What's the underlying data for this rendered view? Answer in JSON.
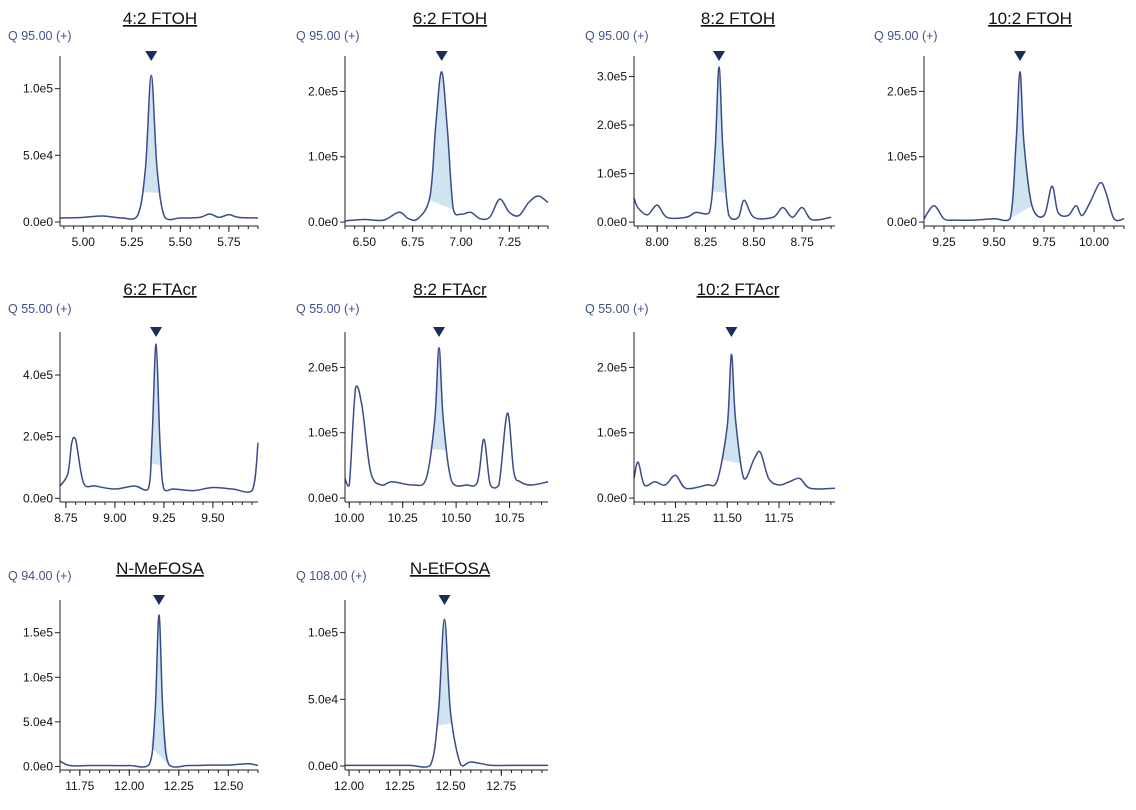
{
  "figure": {
    "layout": "3 rows x 4 columns grid of chromatograms"
  },
  "chart_data": [
    {
      "type": "line",
      "title": "4:2 FTOH",
      "ion_label": "Q 95.00 (+)",
      "xlim": [
        4.88,
        5.9
      ],
      "ylim": [
        -3000,
        120000
      ],
      "xticks": [
        5.0,
        5.25,
        5.5,
        5.75
      ],
      "xtick_labels": [
        "5.00",
        "5.25",
        "5.50",
        "5.75"
      ],
      "yticks": [
        0,
        50000,
        100000
      ],
      "ytick_labels": [
        "0.0e0",
        "5.0e4",
        "1.0e5"
      ],
      "peak_rt": 5.35,
      "shaded_range": [
        5.3,
        5.4
      ],
      "x": [
        4.88,
        5.0,
        5.1,
        5.2,
        5.28,
        5.32,
        5.35,
        5.38,
        5.42,
        5.5,
        5.6,
        5.65,
        5.7,
        5.75,
        5.8,
        5.9
      ],
      "y": [
        3000,
        3500,
        4500,
        3000,
        5000,
        40000,
        110000,
        40000,
        3500,
        3000,
        3500,
        6000,
        3500,
        5500,
        3500,
        3000
      ]
    },
    {
      "type": "line",
      "title": "6:2 FTOH",
      "ion_label": "Q 95.00 (+)",
      "xlim": [
        6.4,
        7.45
      ],
      "ylim": [
        -6000,
        245000
      ],
      "xticks": [
        6.5,
        6.75,
        7.0,
        7.25
      ],
      "xtick_labels": [
        "6.50",
        "6.75",
        "7.00",
        "7.25"
      ],
      "yticks": [
        0,
        100000,
        200000
      ],
      "ytick_labels": [
        "0.0e0",
        "1.0e5",
        "2.0e5"
      ],
      "peak_rt": 6.9,
      "shaded_range": [
        6.83,
        6.97
      ],
      "x": [
        6.4,
        6.5,
        6.6,
        6.68,
        6.73,
        6.78,
        6.84,
        6.87,
        6.9,
        6.93,
        6.96,
        7.0,
        7.05,
        7.1,
        7.15,
        7.2,
        7.25,
        7.3,
        7.35,
        7.4,
        7.45
      ],
      "y": [
        2000,
        4000,
        3000,
        15000,
        5000,
        6000,
        40000,
        150000,
        230000,
        140000,
        20000,
        12000,
        15000,
        5000,
        8000,
        35000,
        15000,
        10000,
        30000,
        40000,
        30000
      ]
    },
    {
      "type": "line",
      "title": "8:2 FTOH",
      "ion_label": "Q 95.00 (+)",
      "xlim": [
        7.88,
        8.92
      ],
      "ylim": [
        -8000,
        330000
      ],
      "xticks": [
        8.0,
        8.25,
        8.5,
        8.75
      ],
      "xtick_labels": [
        "8.00",
        "8.25",
        "8.50",
        "8.75"
      ],
      "yticks": [
        0,
        100000,
        200000,
        300000
      ],
      "ytick_labels": [
        "0.0e0",
        "1.0e5",
        "2.0e5",
        "3.0e5"
      ],
      "peak_rt": 8.32,
      "shaded_range": [
        8.28,
        8.36
      ],
      "x": [
        7.88,
        7.9,
        7.95,
        8.0,
        8.05,
        8.15,
        8.2,
        8.27,
        8.3,
        8.32,
        8.34,
        8.37,
        8.42,
        8.45,
        8.5,
        8.6,
        8.65,
        8.7,
        8.75,
        8.8,
        8.9
      ],
      "y": [
        50000,
        30000,
        15000,
        35000,
        10000,
        10000,
        20000,
        20000,
        150000,
        320000,
        150000,
        15000,
        10000,
        45000,
        10000,
        10000,
        30000,
        10000,
        30000,
        5000,
        10000
      ]
    },
    {
      "type": "line",
      "title": "10:2 FTOH",
      "ion_label": "Q 95.00 (+)",
      "xlim": [
        9.15,
        10.15
      ],
      "ylim": [
        -6000,
        245000
      ],
      "xticks": [
        9.25,
        9.5,
        9.75,
        10.0
      ],
      "xtick_labels": [
        "9.25",
        "9.50",
        "9.75",
        "10.00"
      ],
      "yticks": [
        0,
        100000,
        200000
      ],
      "ytick_labels": [
        "0.0e0",
        "1.0e5",
        "2.0e5"
      ],
      "peak_rt": 9.63,
      "shaded_range": [
        9.58,
        9.69
      ],
      "x": [
        9.15,
        9.2,
        9.25,
        9.3,
        9.4,
        9.5,
        9.58,
        9.61,
        9.63,
        9.65,
        9.69,
        9.75,
        9.79,
        9.82,
        9.87,
        9.91,
        9.94,
        9.98,
        10.03,
        10.06,
        10.1,
        10.15
      ],
      "y": [
        5000,
        25000,
        5000,
        3000,
        3000,
        5000,
        5000,
        120000,
        230000,
        120000,
        25000,
        10000,
        55000,
        15000,
        10000,
        25000,
        10000,
        30000,
        60000,
        45000,
        5000,
        5000
      ]
    },
    {
      "type": "line",
      "title": "6:2 FTAcr",
      "ion_label": "Q 55.00 (+)",
      "xlim": [
        8.72,
        9.73
      ],
      "ylim": [
        -12000,
        520000
      ],
      "xticks": [
        8.75,
        9.0,
        9.25,
        9.5
      ],
      "xtick_labels": [
        "8.75",
        "9.00",
        "9.25",
        "9.50"
      ],
      "yticks": [
        0,
        200000,
        400000
      ],
      "ytick_labels": [
        "0.0e0",
        "2.0e5",
        "4.0e5"
      ],
      "peak_rt": 9.21,
      "shaded_range": [
        9.18,
        9.24
      ],
      "x": [
        8.72,
        8.76,
        8.78,
        8.8,
        8.84,
        8.9,
        9.0,
        9.1,
        9.17,
        9.19,
        9.21,
        9.23,
        9.25,
        9.3,
        9.4,
        9.5,
        9.6,
        9.7,
        9.73
      ],
      "y": [
        40000,
        80000,
        180000,
        190000,
        50000,
        40000,
        30000,
        40000,
        30000,
        200000,
        500000,
        180000,
        30000,
        30000,
        25000,
        35000,
        30000,
        25000,
        180000
      ]
    },
    {
      "type": "line",
      "title": "8:2 FTAcr",
      "ion_label": "Q 55.00 (+)",
      "xlim": [
        9.98,
        10.93
      ],
      "ylim": [
        -6000,
        245000
      ],
      "xticks": [
        10.0,
        10.25,
        10.5,
        10.75
      ],
      "xtick_labels": [
        "10.00",
        "10.25",
        "10.50",
        "10.75"
      ],
      "yticks": [
        0,
        100000,
        200000
      ],
      "ytick_labels": [
        "0.0e0",
        "1.0e5",
        "2.0e5"
      ],
      "peak_rt": 10.42,
      "shaded_range": [
        10.38,
        10.46
      ],
      "x": [
        9.98,
        10.0,
        10.03,
        10.06,
        10.1,
        10.15,
        10.2,
        10.3,
        10.36,
        10.4,
        10.42,
        10.44,
        10.48,
        10.55,
        10.6,
        10.63,
        10.66,
        10.7,
        10.74,
        10.77,
        10.8,
        10.85,
        10.93
      ],
      "y": [
        30000,
        20000,
        170000,
        140000,
        40000,
        20000,
        25000,
        20000,
        30000,
        120000,
        230000,
        120000,
        25000,
        20000,
        25000,
        90000,
        20000,
        20000,
        130000,
        40000,
        25000,
        20000,
        25000
      ]
    },
    {
      "type": "line",
      "title": "10:2 FTAcr",
      "ion_label": "Q 55.00 (+)",
      "xlim": [
        11.05,
        12.02
      ],
      "ylim": [
        -6000,
        245000
      ],
      "xticks": [
        11.25,
        11.5,
        11.75
      ],
      "xtick_labels": [
        "11.25",
        "11.50",
        "11.75"
      ],
      "yticks": [
        0,
        100000,
        200000
      ],
      "ytick_labels": [
        "0.0e0",
        "1.0e5",
        "2.0e5"
      ],
      "peak_rt": 11.52,
      "shaded_range": [
        11.47,
        11.57
      ],
      "x": [
        11.05,
        11.07,
        11.1,
        11.15,
        11.2,
        11.25,
        11.3,
        11.4,
        11.45,
        11.5,
        11.52,
        11.54,
        11.58,
        11.63,
        11.66,
        11.7,
        11.75,
        11.8,
        11.85,
        11.9,
        12.02
      ],
      "y": [
        30000,
        55000,
        20000,
        25000,
        20000,
        35000,
        15000,
        20000,
        25000,
        110000,
        220000,
        120000,
        30000,
        60000,
        70000,
        30000,
        20000,
        25000,
        30000,
        15000,
        15000
      ]
    },
    {
      "type": "line",
      "title": "N-MeFOSA",
      "ion_label": "Q 94.00 (+)",
      "xlim": [
        11.65,
        12.65
      ],
      "ylim": [
        -4000,
        180000
      ],
      "xticks": [
        11.75,
        12.0,
        12.25,
        12.5
      ],
      "xtick_labels": [
        "11.75",
        "12.00",
        "12.25",
        "12.50"
      ],
      "yticks": [
        0,
        50000,
        100000,
        150000
      ],
      "ytick_labels": [
        "0.0e0",
        "5.0e4",
        "1.0e5",
        "1.5e5"
      ],
      "peak_rt": 12.15,
      "shaded_range": [
        12.11,
        12.2
      ],
      "x": [
        11.65,
        11.7,
        11.8,
        11.9,
        12.0,
        12.1,
        12.13,
        12.15,
        12.17,
        12.2,
        12.3,
        12.4,
        12.5,
        12.6,
        12.65
      ],
      "y": [
        6000,
        1000,
        1000,
        1000,
        1000,
        2000,
        60000,
        170000,
        60000,
        2000,
        1000,
        1500,
        1500,
        3000,
        1000
      ]
    },
    {
      "type": "line",
      "title": "N-EtFOSA",
      "ion_label": "Q 108.00 (+)",
      "xlim": [
        11.98,
        12.98
      ],
      "ylim": [
        -3000,
        120000
      ],
      "xticks": [
        12.0,
        12.25,
        12.5,
        12.75
      ],
      "xtick_labels": [
        "12.00",
        "12.25",
        "12.50",
        "12.75"
      ],
      "yticks": [
        0,
        50000,
        100000
      ],
      "ytick_labels": [
        "0.0e0",
        "5.0e4",
        "1.0e5"
      ],
      "peak_rt": 12.47,
      "shaded_range": [
        12.43,
        12.51
      ],
      "x": [
        11.98,
        12.1,
        12.2,
        12.3,
        12.4,
        12.44,
        12.47,
        12.5,
        12.55,
        12.6,
        12.7,
        12.8,
        12.98
      ],
      "y": [
        500,
        500,
        500,
        500,
        500,
        40000,
        110000,
        40000,
        1000,
        3000,
        500,
        500,
        500
      ]
    }
  ]
}
